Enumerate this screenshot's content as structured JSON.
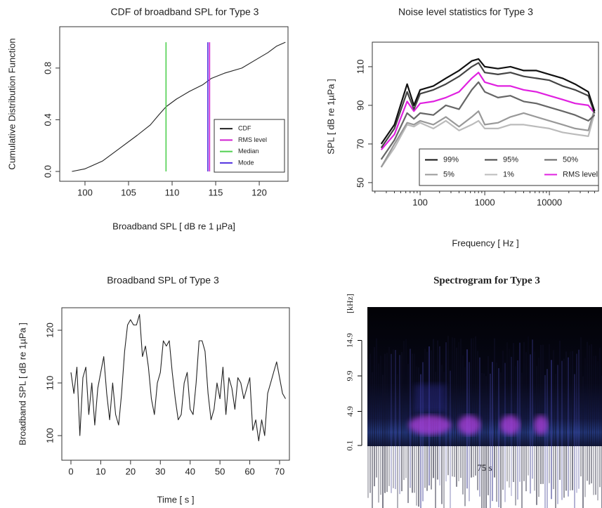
{
  "chart_data": [
    {
      "type": "line",
      "title": "CDF of broadband SPL for Type 3",
      "xlabel": "Broadband SPL [ dB re 1 µPa]",
      "ylabel": "Cumulative Distribution Function",
      "x": [
        98.5,
        100,
        102,
        104,
        106,
        107.5,
        108.5,
        109.3,
        110.5,
        112,
        113.5,
        114.5,
        116,
        118,
        119.5,
        121,
        122,
        123
      ],
      "series": [
        {
          "name": "CDF",
          "color": "#222222",
          "values": [
            0,
            0.02,
            0.08,
            0.18,
            0.28,
            0.36,
            0.44,
            0.5,
            0.56,
            0.62,
            0.67,
            0.72,
            0.76,
            0.8,
            0.86,
            0.92,
            0.97,
            1.0
          ]
        }
      ],
      "vlines": [
        {
          "name": "RMS level",
          "color": "#d020d0",
          "x": 114.3
        },
        {
          "name": "Median",
          "color": "#50d050",
          "x": 109.3
        },
        {
          "name": "Mode",
          "color": "#5030e0",
          "x": 114.1
        }
      ],
      "xlim": [
        97.1,
        123.3
      ],
      "xticks": [
        100,
        105,
        110,
        115,
        120
      ],
      "ylim": [
        -0.076,
        1.12
      ],
      "yticks": [
        {
          "value": 0,
          "label": "0.0"
        },
        {
          "value": 0.4,
          "label": "0.4"
        },
        {
          "value": 0.8,
          "label": "0.8"
        }
      ],
      "legend": "bottom-right"
    },
    {
      "type": "line",
      "title": "Noise level statistics for  Type 3",
      "xlabel": "Frequency [ Hz ]",
      "ylabel": "SPL [ dB re 1µPa ]",
      "xlog": true,
      "x": [
        25,
        40,
        63,
        80,
        100,
        160,
        250,
        400,
        630,
        800,
        1000,
        1600,
        2500,
        4000,
        6300,
        10000,
        16000,
        25000,
        40000,
        50000
      ],
      "series": [
        {
          "name": "99%",
          "color": "#111111",
          "values": [
            70,
            80,
            101,
            90,
            98,
            100,
            104,
            108,
            113,
            114,
            110,
            109,
            110,
            108,
            108,
            106,
            104,
            101,
            97,
            87
          ]
        },
        {
          "name": "95%",
          "color": "#444444",
          "values": [
            68,
            78,
            97,
            88,
            96,
            98,
            101,
            105,
            110,
            112,
            107,
            106,
            107,
            105,
            104,
            103,
            100,
            98,
            95,
            86
          ]
        },
        {
          "name": "50%",
          "color": "#666666",
          "values": [
            62,
            72,
            86,
            83,
            86,
            85,
            90,
            88,
            98,
            102,
            97,
            94,
            95,
            92,
            91,
            89,
            87,
            85,
            82,
            85
          ]
        },
        {
          "name": "5%",
          "color": "#999999",
          "values": [
            58,
            70,
            81,
            80,
            82,
            80,
            84,
            79,
            84,
            87,
            80,
            81,
            84,
            86,
            84,
            82,
            80,
            78,
            77,
            88
          ]
        },
        {
          "name": "1%",
          "color": "#bbbbbb",
          "values": [
            58,
            68,
            80,
            79,
            81,
            78,
            82,
            77,
            80,
            82,
            78,
            78,
            80,
            80,
            79,
            78,
            76,
            75,
            74,
            86
          ]
        },
        {
          "name": "RMS level",
          "color": "#e020e0",
          "values": [
            67,
            75,
            92,
            87,
            91,
            92,
            94,
            97,
            104,
            107,
            102,
            100,
            100,
            98,
            97,
            95,
            93,
            91,
            90,
            86
          ]
        }
      ],
      "xlim": [
        18.2,
        57500
      ],
      "xticks": [
        100,
        1000,
        10000
      ],
      "ylim": [
        45.6,
        122.7
      ],
      "yticks": [
        50,
        70,
        90,
        110
      ],
      "legend": "bottom-right"
    },
    {
      "type": "line",
      "title": "Broadband SPL of  Type 3",
      "xlabel": "Time [ s ]",
      "ylabel": "Broadband SPL [ dB re 1µPa ]",
      "x": [
        0,
        1,
        2,
        3,
        4,
        5,
        6,
        7,
        8,
        9,
        10,
        11,
        12,
        13,
        14,
        15,
        16,
        17,
        18,
        19,
        20,
        21,
        22,
        23,
        24,
        25,
        26,
        27,
        28,
        29,
        30,
        31,
        32,
        33,
        34,
        35,
        36,
        37,
        38,
        39,
        40,
        41,
        42,
        43,
        44,
        45,
        46,
        47,
        48,
        49,
        50,
        51,
        52,
        53,
        54,
        55,
        56,
        57,
        58,
        59,
        60,
        61,
        62,
        63,
        64,
        65,
        66,
        67,
        68,
        69,
        70,
        71,
        72
      ],
      "series": [
        {
          "name": "Broadband SPL",
          "color": "#222222",
          "values": [
            112,
            108,
            113,
            100,
            111,
            113,
            104,
            110,
            102,
            109,
            112,
            115,
            108,
            103,
            110,
            104,
            102,
            108,
            116,
            121,
            122,
            121,
            121,
            123,
            115,
            117,
            113,
            107,
            104,
            110,
            112,
            118,
            117,
            118,
            112,
            107,
            103,
            104,
            110,
            112,
            105,
            104,
            110,
            118,
            118,
            116,
            108,
            103,
            105,
            110,
            107,
            113,
            104,
            111,
            109,
            105,
            111,
            110,
            107,
            109,
            111,
            101,
            103,
            99,
            103,
            100,
            108,
            110,
            112,
            114,
            111,
            108,
            107
          ]
        }
      ],
      "xlim": [
        -3.06,
        73.3
      ],
      "xticks": [
        0,
        10,
        20,
        30,
        40,
        50,
        60,
        70
      ],
      "ylim": [
        95.33,
        124.27
      ],
      "yticks": [
        100,
        110,
        120
      ]
    },
    {
      "type": "heatmap",
      "title": "Spectrogram for Type 3",
      "xlabel": "75 s",
      "ylabel": "[kHz]",
      "ylim": [
        0,
        19.6
      ],
      "yticks": [
        0.1,
        4.9,
        9.9,
        14.9
      ]
    }
  ]
}
